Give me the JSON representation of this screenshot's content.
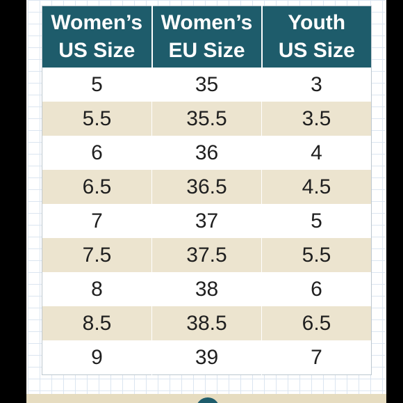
{
  "size_chart": {
    "headers": [
      {
        "line1": "Women’s",
        "line2": "US Size"
      },
      {
        "line1": "Women’s",
        "line2": "EU Size"
      },
      {
        "line1": "Youth",
        "line2": "US Size"
      }
    ],
    "rows": [
      [
        "5",
        "35",
        "3"
      ],
      [
        "5.5",
        "35.5",
        "3.5"
      ],
      [
        "6",
        "36",
        "4"
      ],
      [
        "6.5",
        "36.5",
        "4.5"
      ],
      [
        "7",
        "37",
        "5"
      ],
      [
        "7.5",
        "37.5",
        "5.5"
      ],
      [
        "8",
        "38",
        "6"
      ],
      [
        "8.5",
        "38.5",
        "6.5"
      ],
      [
        "9",
        "39",
        "7"
      ]
    ]
  },
  "colors": {
    "header_bg": "#1e5c6b",
    "stripe_bg": "#ece4cf",
    "page_bg": "#000000"
  }
}
